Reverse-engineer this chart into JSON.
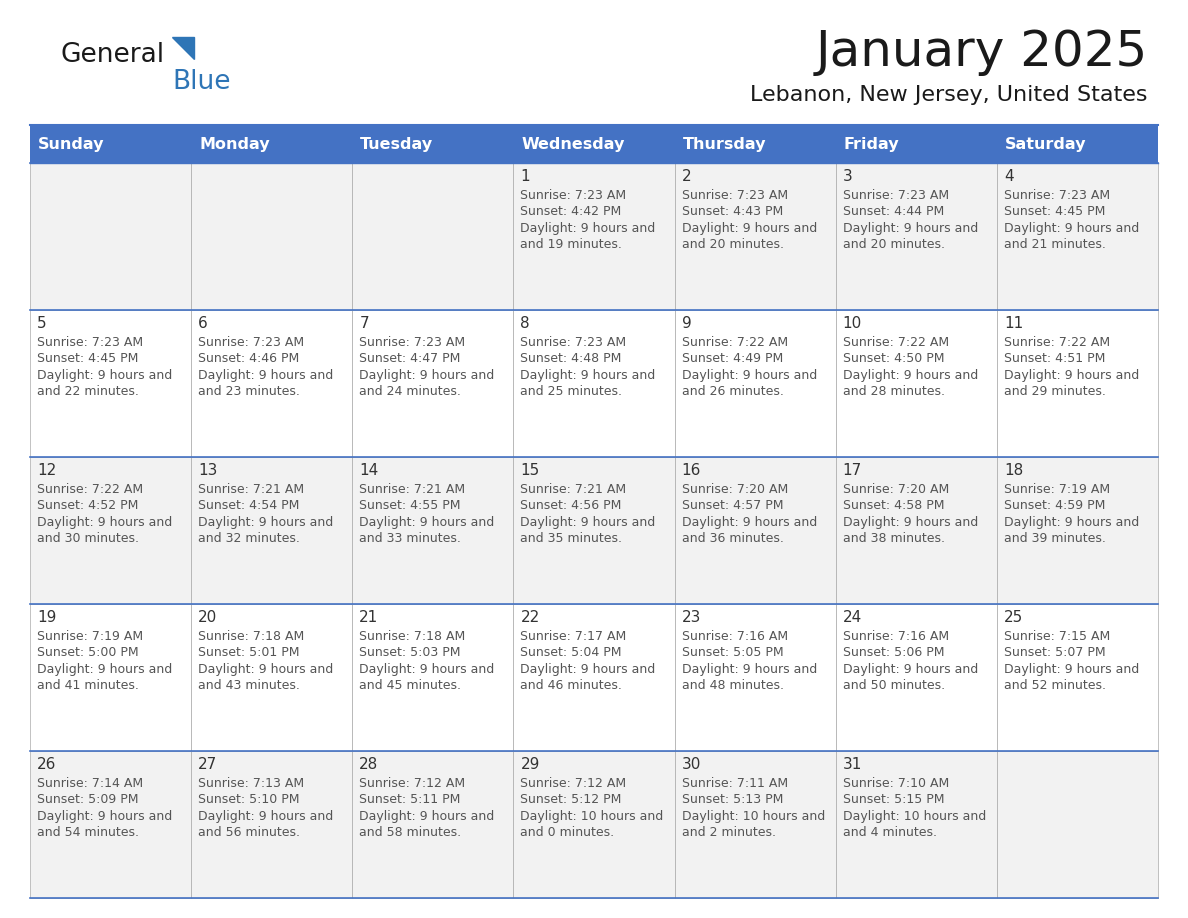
{
  "title": "January 2025",
  "subtitle": "Lebanon, New Jersey, United States",
  "header_color": "#4472C4",
  "header_text_color": "#FFFFFF",
  "cell_bg_row0": "#F2F2F2",
  "cell_bg_row1": "#FFFFFF",
  "border_color": "#4472C4",
  "cell_border_color": "#AAAAAA",
  "day_names": [
    "Sunday",
    "Monday",
    "Tuesday",
    "Wednesday",
    "Thursday",
    "Friday",
    "Saturday"
  ],
  "title_color": "#1a1a1a",
  "subtitle_color": "#1a1a1a",
  "text_color": "#555555",
  "date_color": "#333333",
  "logo_general_color": "#1a1a1a",
  "logo_blue_color": "#2E75B6",
  "logo_triangle_color": "#2E75B6",
  "figwidth": 11.88,
  "figheight": 9.18,
  "days": [
    {
      "date": 1,
      "col": 3,
      "row": 0,
      "sunrise": "7:23 AM",
      "sunset": "4:42 PM",
      "daylight_h": "9 hours",
      "daylight_m": "19 minutes."
    },
    {
      "date": 2,
      "col": 4,
      "row": 0,
      "sunrise": "7:23 AM",
      "sunset": "4:43 PM",
      "daylight_h": "9 hours",
      "daylight_m": "20 minutes."
    },
    {
      "date": 3,
      "col": 5,
      "row": 0,
      "sunrise": "7:23 AM",
      "sunset": "4:44 PM",
      "daylight_h": "9 hours",
      "daylight_m": "20 minutes."
    },
    {
      "date": 4,
      "col": 6,
      "row": 0,
      "sunrise": "7:23 AM",
      "sunset": "4:45 PM",
      "daylight_h": "9 hours",
      "daylight_m": "21 minutes."
    },
    {
      "date": 5,
      "col": 0,
      "row": 1,
      "sunrise": "7:23 AM",
      "sunset": "4:45 PM",
      "daylight_h": "9 hours",
      "daylight_m": "22 minutes."
    },
    {
      "date": 6,
      "col": 1,
      "row": 1,
      "sunrise": "7:23 AM",
      "sunset": "4:46 PM",
      "daylight_h": "9 hours",
      "daylight_m": "23 minutes."
    },
    {
      "date": 7,
      "col": 2,
      "row": 1,
      "sunrise": "7:23 AM",
      "sunset": "4:47 PM",
      "daylight_h": "9 hours",
      "daylight_m": "24 minutes."
    },
    {
      "date": 8,
      "col": 3,
      "row": 1,
      "sunrise": "7:23 AM",
      "sunset": "4:48 PM",
      "daylight_h": "9 hours",
      "daylight_m": "25 minutes."
    },
    {
      "date": 9,
      "col": 4,
      "row": 1,
      "sunrise": "7:22 AM",
      "sunset": "4:49 PM",
      "daylight_h": "9 hours",
      "daylight_m": "26 minutes."
    },
    {
      "date": 10,
      "col": 5,
      "row": 1,
      "sunrise": "7:22 AM",
      "sunset": "4:50 PM",
      "daylight_h": "9 hours",
      "daylight_m": "28 minutes."
    },
    {
      "date": 11,
      "col": 6,
      "row": 1,
      "sunrise": "7:22 AM",
      "sunset": "4:51 PM",
      "daylight_h": "9 hours",
      "daylight_m": "29 minutes."
    },
    {
      "date": 12,
      "col": 0,
      "row": 2,
      "sunrise": "7:22 AM",
      "sunset": "4:52 PM",
      "daylight_h": "9 hours",
      "daylight_m": "30 minutes."
    },
    {
      "date": 13,
      "col": 1,
      "row": 2,
      "sunrise": "7:21 AM",
      "sunset": "4:54 PM",
      "daylight_h": "9 hours",
      "daylight_m": "32 minutes."
    },
    {
      "date": 14,
      "col": 2,
      "row": 2,
      "sunrise": "7:21 AM",
      "sunset": "4:55 PM",
      "daylight_h": "9 hours",
      "daylight_m": "33 minutes."
    },
    {
      "date": 15,
      "col": 3,
      "row": 2,
      "sunrise": "7:21 AM",
      "sunset": "4:56 PM",
      "daylight_h": "9 hours",
      "daylight_m": "35 minutes."
    },
    {
      "date": 16,
      "col": 4,
      "row": 2,
      "sunrise": "7:20 AM",
      "sunset": "4:57 PM",
      "daylight_h": "9 hours",
      "daylight_m": "36 minutes."
    },
    {
      "date": 17,
      "col": 5,
      "row": 2,
      "sunrise": "7:20 AM",
      "sunset": "4:58 PM",
      "daylight_h": "9 hours",
      "daylight_m": "38 minutes."
    },
    {
      "date": 18,
      "col": 6,
      "row": 2,
      "sunrise": "7:19 AM",
      "sunset": "4:59 PM",
      "daylight_h": "9 hours",
      "daylight_m": "39 minutes."
    },
    {
      "date": 19,
      "col": 0,
      "row": 3,
      "sunrise": "7:19 AM",
      "sunset": "5:00 PM",
      "daylight_h": "9 hours",
      "daylight_m": "41 minutes."
    },
    {
      "date": 20,
      "col": 1,
      "row": 3,
      "sunrise": "7:18 AM",
      "sunset": "5:01 PM",
      "daylight_h": "9 hours",
      "daylight_m": "43 minutes."
    },
    {
      "date": 21,
      "col": 2,
      "row": 3,
      "sunrise": "7:18 AM",
      "sunset": "5:03 PM",
      "daylight_h": "9 hours",
      "daylight_m": "45 minutes."
    },
    {
      "date": 22,
      "col": 3,
      "row": 3,
      "sunrise": "7:17 AM",
      "sunset": "5:04 PM",
      "daylight_h": "9 hours",
      "daylight_m": "46 minutes."
    },
    {
      "date": 23,
      "col": 4,
      "row": 3,
      "sunrise": "7:16 AM",
      "sunset": "5:05 PM",
      "daylight_h": "9 hours",
      "daylight_m": "48 minutes."
    },
    {
      "date": 24,
      "col": 5,
      "row": 3,
      "sunrise": "7:16 AM",
      "sunset": "5:06 PM",
      "daylight_h": "9 hours",
      "daylight_m": "50 minutes."
    },
    {
      "date": 25,
      "col": 6,
      "row": 3,
      "sunrise": "7:15 AM",
      "sunset": "5:07 PM",
      "daylight_h": "9 hours",
      "daylight_m": "52 minutes."
    },
    {
      "date": 26,
      "col": 0,
      "row": 4,
      "sunrise": "7:14 AM",
      "sunset": "5:09 PM",
      "daylight_h": "9 hours",
      "daylight_m": "54 minutes."
    },
    {
      "date": 27,
      "col": 1,
      "row": 4,
      "sunrise": "7:13 AM",
      "sunset": "5:10 PM",
      "daylight_h": "9 hours",
      "daylight_m": "56 minutes."
    },
    {
      "date": 28,
      "col": 2,
      "row": 4,
      "sunrise": "7:12 AM",
      "sunset": "5:11 PM",
      "daylight_h": "9 hours",
      "daylight_m": "58 minutes."
    },
    {
      "date": 29,
      "col": 3,
      "row": 4,
      "sunrise": "7:12 AM",
      "sunset": "5:12 PM",
      "daylight_h": "10 hours",
      "daylight_m": "0 minutes."
    },
    {
      "date": 30,
      "col": 4,
      "row": 4,
      "sunrise": "7:11 AM",
      "sunset": "5:13 PM",
      "daylight_h": "10 hours",
      "daylight_m": "2 minutes."
    },
    {
      "date": 31,
      "col": 5,
      "row": 4,
      "sunrise": "7:10 AM",
      "sunset": "5:15 PM",
      "daylight_h": "10 hours",
      "daylight_m": "4 minutes."
    }
  ]
}
